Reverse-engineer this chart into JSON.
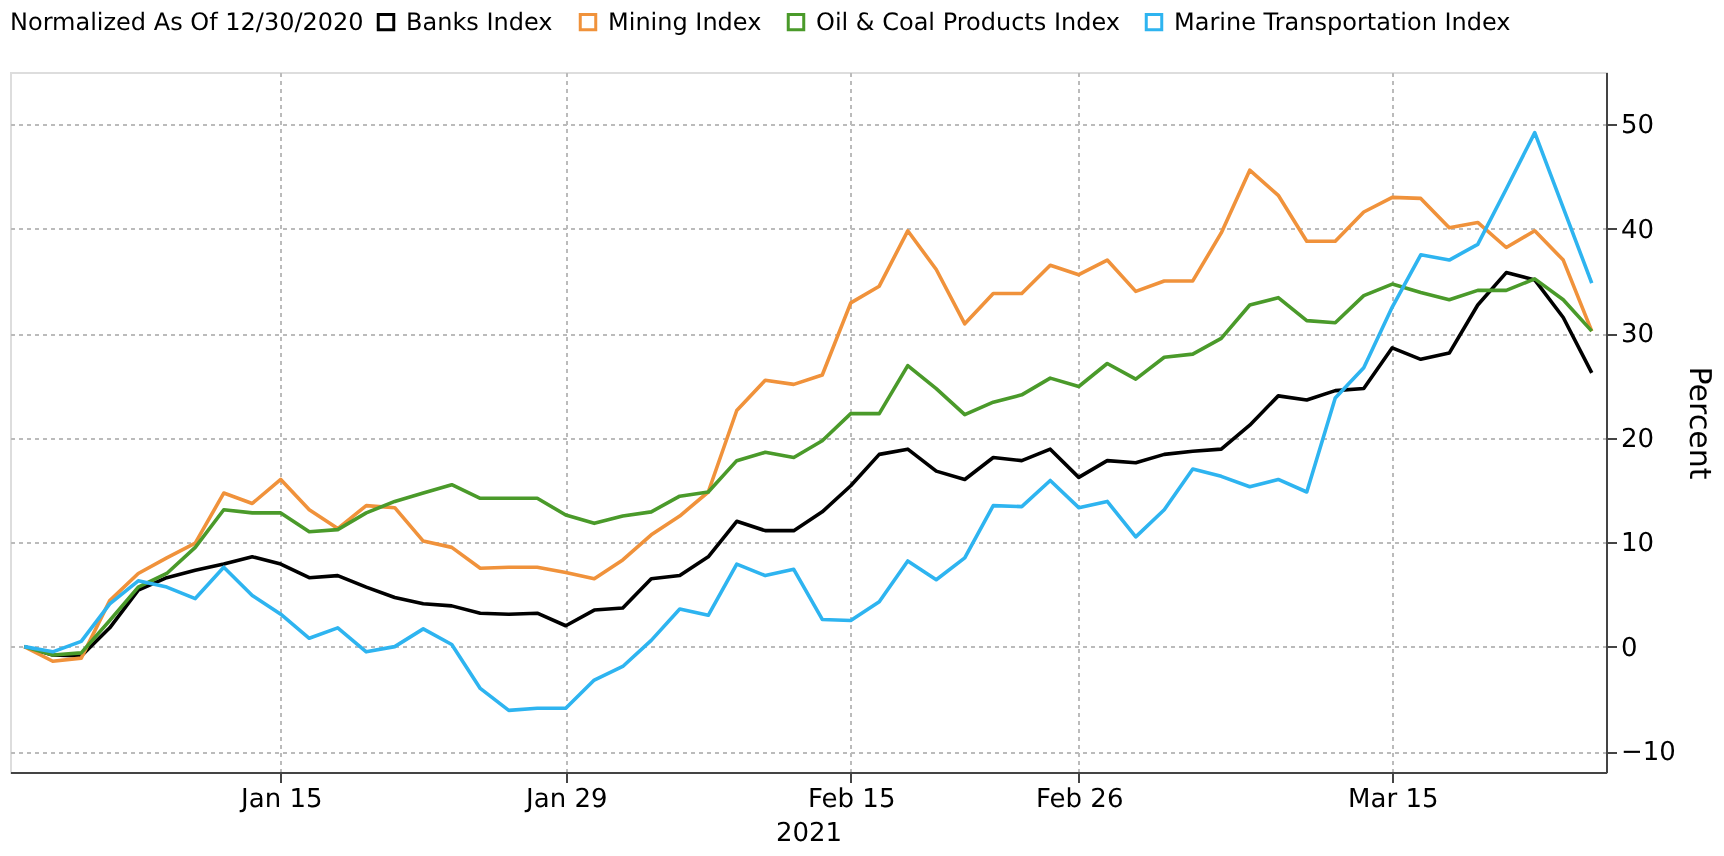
{
  "chart_data": {
    "type": "line",
    "legend_title": "Normalized As Of 12/30/2020",
    "xlabel": "2021",
    "ylabel": "Percent",
    "categories": [
      null,
      null,
      null,
      null,
      null,
      null,
      null,
      null,
      null,
      "Jan 15",
      null,
      null,
      null,
      null,
      null,
      null,
      null,
      null,
      null,
      "Jan 29",
      null,
      null,
      null,
      null,
      null,
      null,
      null,
      null,
      null,
      "Feb 15",
      null,
      null,
      null,
      null,
      null,
      null,
      null,
      "Feb 26",
      null,
      null,
      null,
      null,
      null,
      null,
      null,
      null,
      null,
      null,
      "Mar 15",
      null,
      null,
      null,
      null,
      null,
      null,
      null
    ],
    "series": [
      {
        "name": "Banks Index",
        "color": "#000000",
        "values": [
          0,
          -0.8,
          -0.9,
          1.8,
          5.4,
          6.6,
          7.3,
          7.9,
          8.6,
          7.9,
          6.6,
          6.8,
          5.7,
          4.7,
          4.1,
          3.9,
          3.2,
          3.1,
          3.2,
          2.0,
          3.5,
          3.7,
          6.5,
          6.8,
          8.6,
          12.0,
          11.1,
          11.1,
          12.9,
          15.4,
          18.4,
          18.9,
          16.8,
          16.0,
          18.1,
          17.8,
          18.9,
          16.2,
          17.8,
          17.6,
          18.4,
          18.7,
          18.9,
          21.2,
          24.0,
          23.6,
          24.5,
          24.7,
          28.6,
          27.5,
          28.1,
          32.7,
          35.8,
          35.1,
          31.5,
          26.2
        ]
      },
      {
        "name": "Mining Index",
        "color": "#f0923b",
        "values": [
          0,
          -1.4,
          -1.1,
          4.4,
          7.0,
          8.5,
          9.9,
          14.7,
          13.7,
          16.0,
          13.1,
          11.3,
          13.5,
          13.3,
          10.1,
          9.5,
          7.5,
          7.6,
          7.6,
          7.1,
          6.5,
          8.3,
          10.7,
          12.5,
          14.8,
          22.6,
          25.5,
          25.1,
          26.0,
          32.9,
          34.5,
          39.8,
          36.1,
          30.9,
          33.8,
          33.8,
          36.5,
          35.6,
          37.0,
          34.0,
          35.0,
          35.0,
          39.6,
          45.6,
          43.2,
          38.8,
          38.8,
          41.6,
          43.0,
          42.9,
          40.1,
          40.6,
          38.2,
          39.8,
          37.0,
          30.2
        ]
      },
      {
        "name": "Oil & Coal Products Index",
        "color": "#4a9a2a",
        "values": [
          0,
          -0.8,
          -0.6,
          2.5,
          5.7,
          7.0,
          9.5,
          13.1,
          12.8,
          12.8,
          11.0,
          11.2,
          12.8,
          13.9,
          14.7,
          15.5,
          14.2,
          14.2,
          14.2,
          12.6,
          11.8,
          12.5,
          12.9,
          14.4,
          14.8,
          17.8,
          18.6,
          18.1,
          19.7,
          22.3,
          22.3,
          26.9,
          24.7,
          22.2,
          23.4,
          24.1,
          25.7,
          24.9,
          27.1,
          25.6,
          27.7,
          28.0,
          29.5,
          32.7,
          33.4,
          31.2,
          31.0,
          33.6,
          34.7,
          33.9,
          33.2,
          34.1,
          34.1,
          35.2,
          33.2,
          30.2
        ]
      },
      {
        "name": "Marine Transportation Index",
        "color": "#2eb4f0",
        "values": [
          0,
          -0.5,
          0.5,
          4.1,
          6.3,
          5.7,
          4.6,
          7.6,
          4.9,
          3.1,
          0.8,
          1.8,
          -0.5,
          0,
          1.7,
          0.2,
          -4.0,
          -6.1,
          -5.9,
          -5.9,
          -3.2,
          -1.9,
          0.6,
          3.6,
          3.0,
          7.9,
          6.8,
          7.4,
          2.6,
          2.5,
          4.3,
          8.2,
          6.4,
          8.5,
          13.5,
          13.4,
          15.9,
          13.3,
          13.9,
          10.5,
          13.1,
          17.0,
          16.3,
          15.3,
          16.0,
          14.8,
          23.8,
          26.7,
          32.5,
          37.5,
          37.0,
          38.5,
          43.8,
          49.2,
          42.0,
          34.8
        ]
      }
    ],
    "ylim": [
      -12,
      55
    ],
    "yticks": [
      -10,
      0,
      10,
      20,
      30,
      40,
      50
    ],
    "grid": true,
    "legend": "top"
  }
}
